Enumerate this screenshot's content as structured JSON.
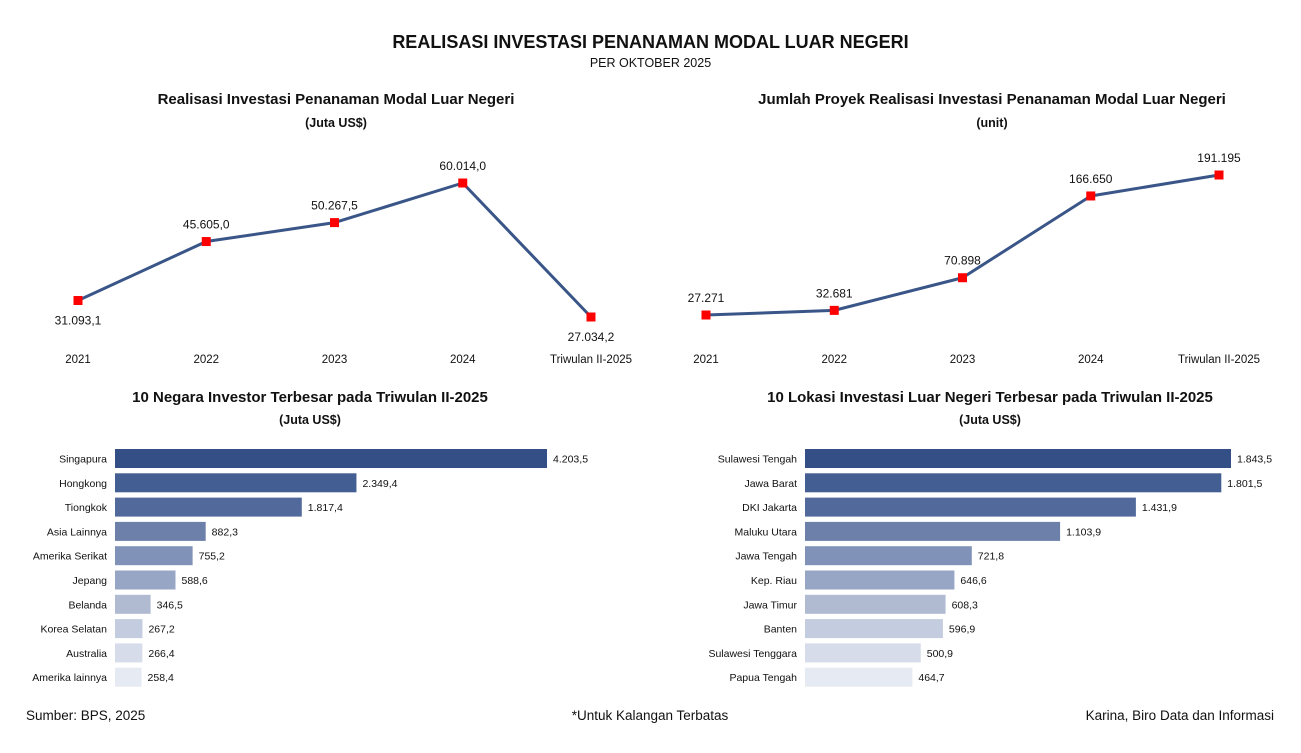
{
  "header": {
    "title": "REALISASI INVESTASI PENANAMAN MODAL LUAR NEGERI",
    "subtitle": "PER OKTOBER 2025"
  },
  "footer": {
    "source": "Sumber: BPS, 2025",
    "note": "*Untuk Kalangan Terbatas",
    "author": "Karina, Biro Data dan Informasi"
  },
  "chart_data": [
    {
      "type": "line",
      "title": "Realisasi Investasi Penanaman Modal Luar Negeri",
      "subtitle": "(Juta US$)",
      "categories": [
        "2021",
        "2022",
        "2023",
        "2024",
        "Triwulan II-2025"
      ],
      "values": [
        31093.1,
        45605.0,
        50267.5,
        60014.0,
        27034.2
      ],
      "labels": [
        "31.093,1",
        "45.605,0",
        "50.267,5",
        "60.014,0",
        "27.034,2"
      ],
      "label_positions": [
        "below",
        "above",
        "above",
        "above",
        "below"
      ],
      "line_color": "#3a5688",
      "marker_color": "#ff0000"
    },
    {
      "type": "line",
      "title": "Jumlah Proyek Realisasi Investasi Penanaman Modal Luar Negeri",
      "subtitle": "(unit)",
      "categories": [
        "2021",
        "2022",
        "2023",
        "2024",
        "Triwulan II-2025"
      ],
      "values": [
        27271,
        32681,
        70898,
        166650,
        191195
      ],
      "labels": [
        "27.271",
        "32.681",
        "70.898",
        "166.650",
        "191.195"
      ],
      "label_positions": [
        "above",
        "above",
        "above",
        "above",
        "above"
      ],
      "line_color": "#3a5688",
      "marker_color": "#ff0000"
    },
    {
      "type": "bar",
      "orientation": "horizontal",
      "title": "10 Negara Investor Terbesar pada Triwulan II-2025",
      "subtitle": "(Juta US$)",
      "categories": [
        "Singapura",
        "Hongkong",
        "Tiongkok",
        "Asia Lainnya",
        "Amerika Serikat",
        "Jepang",
        "Belanda",
        "Korea Selatan",
        "Australia",
        "Amerika lainnya"
      ],
      "values": [
        4203.5,
        2349.4,
        1817.4,
        882.3,
        755.2,
        588.6,
        346.5,
        267.2,
        266.4,
        258.4
      ],
      "labels": [
        "4.203,5",
        "2.349,4",
        "1.817,4",
        "882,3",
        "755,2",
        "588,6",
        "346,5",
        "267,2",
        "266,4",
        "258,4"
      ],
      "colors": [
        "#344f86",
        "#435e92",
        "#52699b",
        "#6c80aa",
        "#8092b7",
        "#97a6c4",
        "#b0bbd2",
        "#c4cddf",
        "#d6dce9",
        "#e6eaf3"
      ]
    },
    {
      "type": "bar",
      "orientation": "horizontal",
      "title": "10 Lokasi Investasi Luar Negeri Terbesar pada Triwulan II-2025",
      "subtitle": "(Juta US$)",
      "categories": [
        "Sulawesi Tengah",
        "Jawa Barat",
        "DKI Jakarta",
        "Maluku Utara",
        "Jawa Tengah",
        "Kep. Riau",
        "Jawa Timur",
        "Banten",
        "Sulawesi Tenggara",
        "Papua Tengah"
      ],
      "values": [
        1843.5,
        1801.5,
        1431.9,
        1103.9,
        721.8,
        646.6,
        608.3,
        596.9,
        500.9,
        464.7
      ],
      "labels": [
        "1.843,5",
        "1.801,5",
        "1.431,9",
        "1.103,9",
        "721,8",
        "646,6",
        "608,3",
        "596,9",
        "500,9",
        "464,7"
      ],
      "colors": [
        "#344f86",
        "#435e92",
        "#52699b",
        "#6c80aa",
        "#8092b7",
        "#97a6c4",
        "#b0bbd2",
        "#c4cddf",
        "#d6dce9",
        "#e6eaf3"
      ]
    }
  ]
}
